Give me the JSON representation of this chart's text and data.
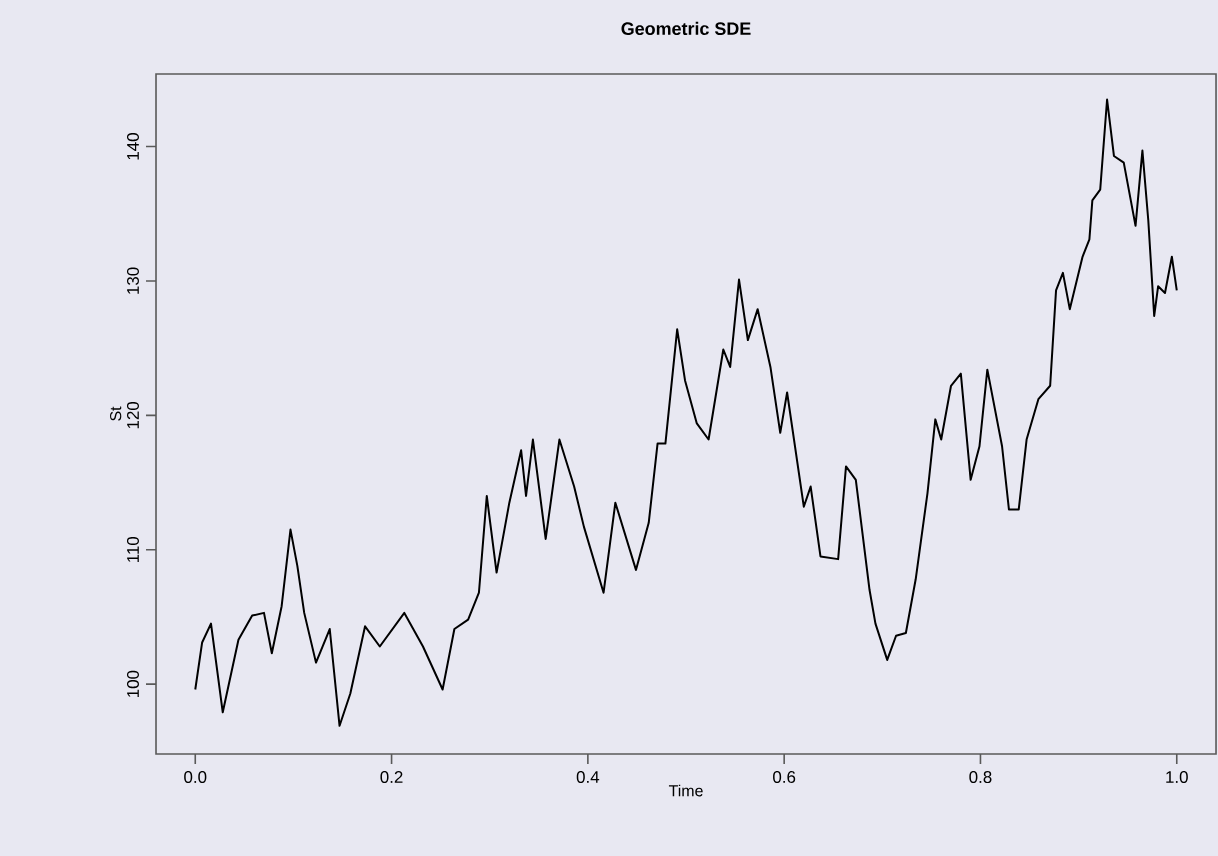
{
  "chart_data": {
    "type": "line",
    "title": "Geometric SDE",
    "xlabel": "Time",
    "ylabel": "St",
    "x": [
      0.0,
      0.007,
      0.016,
      0.028,
      0.044,
      0.058,
      0.07,
      0.078,
      0.088,
      0.097,
      0.104,
      0.111,
      0.123,
      0.137,
      0.147,
      0.158,
      0.173,
      0.188,
      0.213,
      0.232,
      0.252,
      0.264,
      0.278,
      0.289,
      0.297,
      0.307,
      0.32,
      0.332,
      0.337,
      0.344,
      0.357,
      0.371,
      0.386,
      0.396,
      0.416,
      0.428,
      0.449,
      0.462,
      0.471,
      0.479,
      0.491,
      0.499,
      0.511,
      0.523,
      0.538,
      0.545,
      0.554,
      0.563,
      0.573,
      0.586,
      0.596,
      0.603,
      0.62,
      0.627,
      0.637,
      0.655,
      0.663,
      0.673,
      0.687,
      0.693,
      0.705,
      0.714,
      0.724,
      0.734,
      0.746,
      0.754,
      0.76,
      0.77,
      0.78,
      0.79,
      0.799,
      0.807,
      0.822,
      0.829,
      0.839,
      0.847,
      0.859,
      0.871,
      0.877,
      0.884,
      0.891,
      0.904,
      0.911,
      0.914,
      0.922,
      0.929,
      0.936,
      0.946,
      0.958,
      0.965,
      0.971,
      0.977,
      0.981,
      0.988,
      0.995,
      1.0
    ],
    "values": [
      99.6,
      103.1,
      104.5,
      97.9,
      103.3,
      105.1,
      105.3,
      102.3,
      105.8,
      111.5,
      108.8,
      105.3,
      101.6,
      104.1,
      96.9,
      99.3,
      104.3,
      102.8,
      105.3,
      102.8,
      99.6,
      104.1,
      104.8,
      106.8,
      114.0,
      108.3,
      113.5,
      117.4,
      114.0,
      118.2,
      110.8,
      118.2,
      114.7,
      111.7,
      106.8,
      113.5,
      108.5,
      112.0,
      117.9,
      117.9,
      126.4,
      122.6,
      119.4,
      118.2,
      124.9,
      123.6,
      130.1,
      125.6,
      127.9,
      123.6,
      118.7,
      121.7,
      113.2,
      114.7,
      109.5,
      109.3,
      116.2,
      115.2,
      107.0,
      104.5,
      101.8,
      103.6,
      103.8,
      107.8,
      114.2,
      119.7,
      118.2,
      122.2,
      123.1,
      115.2,
      117.7,
      123.4,
      117.7,
      113.0,
      113.0,
      118.2,
      121.2,
      122.2,
      129.3,
      130.6,
      127.9,
      131.8,
      133.1,
      136.0,
      136.8,
      143.5,
      139.3,
      138.8,
      134.1,
      139.7,
      134.5,
      127.4,
      129.6,
      129.1,
      131.8,
      129.3
    ],
    "color": "#000000",
    "line_style": "solid",
    "xlim": [
      -0.04,
      1.04
    ],
    "ylim": [
      94.8,
      145.4
    ],
    "xticks": [
      {
        "value": 0,
        "label": "0.0"
      },
      {
        "value": 0.2,
        "label": "0.2"
      },
      {
        "value": 0.4,
        "label": "0.4"
      },
      {
        "value": 0.6,
        "label": "0.6"
      },
      {
        "value": 0.8,
        "label": "0.8"
      },
      {
        "value": 1,
        "label": "1.0"
      }
    ],
    "yticks": [
      100,
      110,
      120,
      130,
      140
    ]
  }
}
